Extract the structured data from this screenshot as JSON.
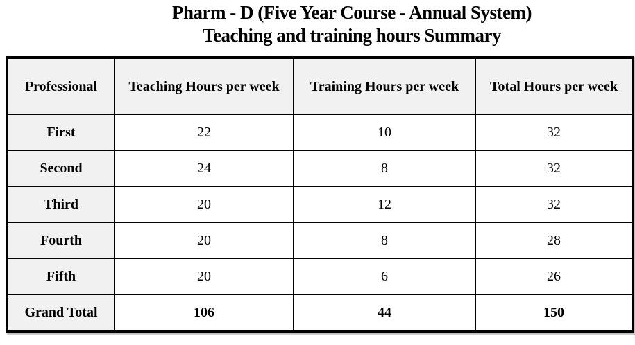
{
  "title": {
    "line1": "Pharm - D (Five Year Course - Annual System)",
    "line2": "Teaching and training hours Summary"
  },
  "chart_data": {
    "type": "table",
    "title": "Pharm - D (Five Year Course - Annual System) — Teaching and training hours Summary",
    "columns": [
      "Professional",
      "Teaching Hours per week",
      "Training Hours per week",
      "Total Hours per week"
    ],
    "rows": [
      {
        "label": "First",
        "values": [
          22,
          10,
          32
        ]
      },
      {
        "label": "Second",
        "values": [
          24,
          8,
          32
        ]
      },
      {
        "label": "Third",
        "values": [
          20,
          12,
          32
        ]
      },
      {
        "label": "Fourth",
        "values": [
          20,
          8,
          28
        ]
      },
      {
        "label": "Fifth",
        "values": [
          20,
          6,
          26
        ]
      },
      {
        "label": "Grand Total",
        "values": [
          106,
          44,
          150
        ]
      }
    ]
  },
  "table": {
    "headers": [
      "Professional",
      "Teaching Hours per week",
      "Training Hours per week",
      "Total Hours per week"
    ],
    "rows": [
      {
        "label": "First",
        "values": [
          "22",
          "10",
          "32"
        ]
      },
      {
        "label": "Second",
        "values": [
          "24",
          "8",
          "32"
        ]
      },
      {
        "label": "Third",
        "values": [
          "20",
          "12",
          "32"
        ]
      },
      {
        "label": "Fourth",
        "values": [
          "20",
          "8",
          "28"
        ]
      },
      {
        "label": "Fifth",
        "values": [
          "20",
          "6",
          "26"
        ]
      },
      {
        "label": "Grand Total",
        "values": [
          "106",
          "44",
          "150"
        ]
      }
    ]
  },
  "colors": {
    "shaded_cell_bg": "#f1f1f1",
    "border": "#000000",
    "page_bg": "#ffffff",
    "text": "#000000"
  }
}
